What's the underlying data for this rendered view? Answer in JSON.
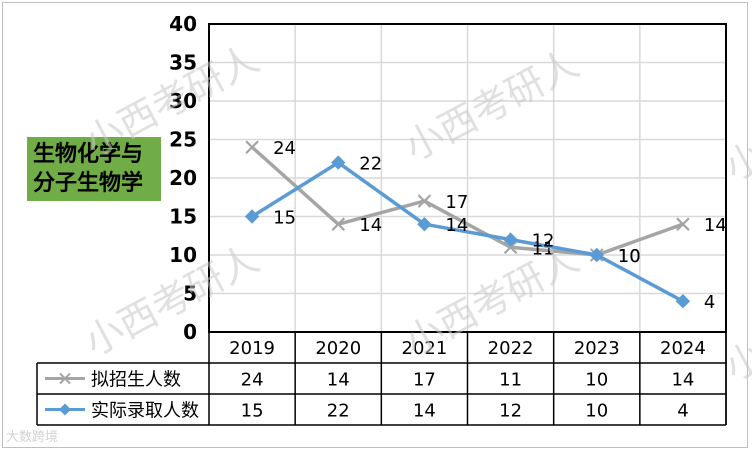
{
  "subject": "生物化学与分子生物学",
  "subject_lines": [
    "生物化学与",
    "分子生物学"
  ],
  "watermark_text": "小西考研人",
  "brand_text": "大数跨境",
  "colors": {
    "planned": "#a5a5a5",
    "actual": "#5b9bd5",
    "badge": "#70ad47",
    "grid": "#d9d9d9",
    "axis": "#000000"
  },
  "chart_data": {
    "type": "line",
    "categories": [
      "2019",
      "2020",
      "2021",
      "2022",
      "2023",
      "2024"
    ],
    "series": [
      {
        "name": "拟招生人数",
        "values": [
          24,
          14,
          17,
          11,
          10,
          14
        ],
        "marker": "x-icon"
      },
      {
        "name": "实际录取人数",
        "values": [
          15,
          22,
          14,
          12,
          10,
          4
        ],
        "marker": "diamond-icon"
      }
    ],
    "ylim": [
      0,
      40
    ],
    "yticks": [
      "0",
      "5",
      "10",
      "15",
      "20",
      "25",
      "30",
      "35",
      "40"
    ],
    "grid": true,
    "data_table": true,
    "legend": "in data table"
  }
}
